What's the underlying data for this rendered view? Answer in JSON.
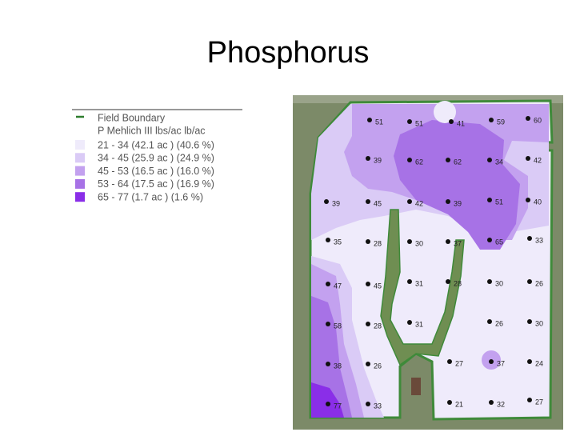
{
  "title": "Phosphorus",
  "legend": {
    "boundary": "Field Boundary",
    "heading": "P Mehlich III lbs/ac lb/ac",
    "items": [
      {
        "label": "21 - 34 (42.1 ac ) (40.6 %)",
        "color": "#efebfb"
      },
      {
        "label": "34 - 45 (25.9 ac ) (24.9 %)",
        "color": "#dacbf6"
      },
      {
        "label": "45 - 53 (16.5 ac ) (16.0 %)",
        "color": "#c3a1ef"
      },
      {
        "label": "53 - 64 (17.5 ac ) (16.9 %)",
        "color": "#a772e6"
      },
      {
        "label": "65 - 77 (1.7 ac ) (1.6 %)",
        "color": "#8a2ee8"
      }
    ]
  },
  "samples": [
    51,
    51,
    41,
    59,
    60,
    39,
    62,
    62,
    34,
    42,
    39,
    45,
    42,
    39,
    51,
    40,
    35,
    28,
    30,
    37,
    65,
    33,
    47,
    45,
    31,
    28,
    30,
    26,
    58,
    28,
    31,
    26,
    30,
    38,
    26,
    27,
    37,
    24,
    77,
    33,
    21,
    32,
    27
  ]
}
